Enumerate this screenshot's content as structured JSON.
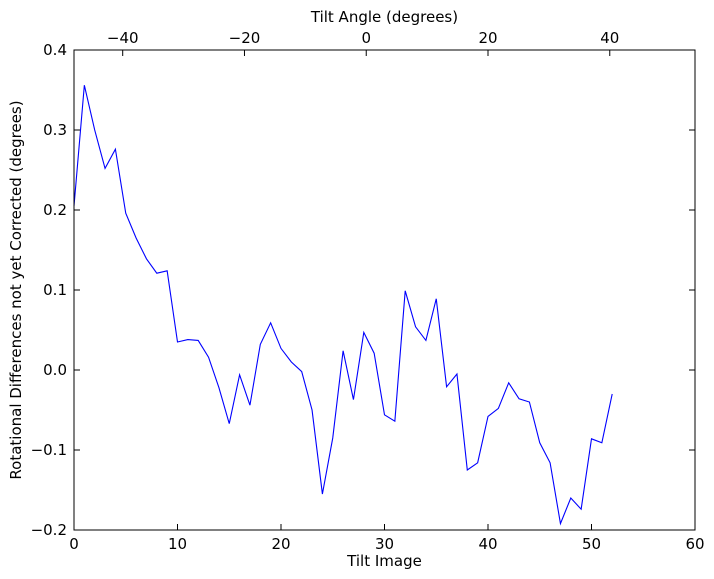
{
  "chart_data": {
    "type": "line",
    "title": "",
    "xlabel": "Tilt Image",
    "ylabel": "Rotational Differences not yet Corrected (degrees)",
    "top_xlabel": "Tilt Angle (degrees)",
    "xlim": [
      0,
      60
    ],
    "ylim": [
      -0.2,
      0.4
    ],
    "top_xlim": [
      -48,
      54
    ],
    "x_ticks": [
      0,
      10,
      20,
      30,
      40,
      50,
      60
    ],
    "x_tick_labels": [
      "0",
      "10",
      "20",
      "30",
      "40",
      "50",
      "60"
    ],
    "y_ticks": [
      -0.2,
      -0.1,
      0.0,
      0.1,
      0.2,
      0.3,
      0.4
    ],
    "y_tick_labels": [
      "−0.2",
      "−0.1",
      "0.0",
      "0.1",
      "0.2",
      "0.3",
      "0.4"
    ],
    "top_x_ticks": [
      -40,
      -20,
      0,
      20,
      40
    ],
    "top_x_tick_labels": [
      "−40",
      "−20",
      "0",
      "20",
      "40"
    ],
    "grid": false,
    "series": [
      {
        "color": "#0000ff",
        "x": [
          0,
          1,
          2,
          3,
          4,
          5,
          6,
          7,
          8,
          9,
          10,
          11,
          12,
          13,
          14,
          15,
          16,
          17,
          18,
          19,
          20,
          21,
          22,
          23,
          24,
          25,
          26,
          27,
          28,
          29,
          30,
          31,
          32,
          33,
          34,
          35,
          36,
          37,
          38,
          39,
          40,
          41,
          42,
          43,
          44,
          45,
          46,
          47,
          48,
          49,
          50,
          51,
          52
        ],
        "values": [
          0.205,
          0.356,
          0.3,
          0.252,
          0.276,
          0.196,
          0.165,
          0.139,
          0.121,
          0.124,
          0.035,
          0.038,
          0.037,
          0.016,
          -0.022,
          -0.067,
          -0.006,
          -0.044,
          0.032,
          0.059,
          0.027,
          0.01,
          -0.002,
          -0.05,
          -0.155,
          -0.085,
          0.024,
          -0.037,
          0.047,
          0.021,
          -0.056,
          -0.064,
          0.099,
          0.054,
          0.037,
          0.089,
          -0.021,
          -0.005,
          -0.125,
          -0.116,
          -0.058,
          -0.048,
          -0.016,
          -0.036,
          -0.04,
          -0.091,
          -0.116,
          -0.192,
          -0.16,
          -0.174,
          -0.086,
          -0.091,
          -0.03
        ]
      }
    ]
  }
}
